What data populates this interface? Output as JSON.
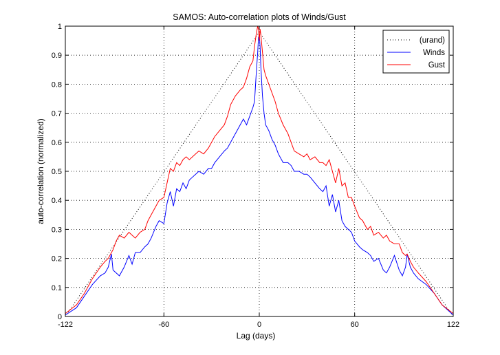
{
  "chart_data": {
    "type": "line",
    "title": "SAMOS: Auto-correlation plots of Winds/Gust",
    "xlabel": "Lag (days)",
    "ylabel": "auto-correlation (normalized)",
    "xlim": [
      -122,
      122
    ],
    "ylim": [
      0,
      1
    ],
    "xticks": [
      -122,
      -60,
      0,
      60,
      122
    ],
    "xtick_labels": [
      "-122",
      "-60",
      "0",
      "60",
      "122"
    ],
    "yticks": [
      0,
      0.1,
      0.2,
      0.3,
      0.4,
      0.5,
      0.6,
      0.7,
      0.8,
      0.9,
      1
    ],
    "ytick_labels": [
      "0",
      "0.1",
      "0.2",
      "0.3",
      "0.4",
      "0.5",
      "0.6",
      "0.7",
      "0.8",
      "0.9",
      "1"
    ],
    "grid": true,
    "legend_position": "top-right",
    "series": [
      {
        "name": "(urand)",
        "color": "#000000",
        "style": "dotted",
        "x": [
          -122,
          0,
          122
        ],
        "y": [
          0,
          0.98,
          0
        ]
      },
      {
        "name": "Winds",
        "color": "#0000ff",
        "style": "solid",
        "x": [
          -122,
          -115,
          -110,
          -105,
          -100,
          -97,
          -95,
          -93,
          -92,
          -90,
          -88,
          -85,
          -82,
          -80,
          -78,
          -75,
          -72,
          -70,
          -68,
          -65,
          -63,
          -60,
          -58,
          -56,
          -54,
          -52,
          -50,
          -48,
          -46,
          -44,
          -42,
          -40,
          -38,
          -35,
          -32,
          -30,
          -28,
          -25,
          -22,
          -20,
          -18,
          -15,
          -12,
          -10,
          -8,
          -6,
          -4,
          -3,
          -2,
          -1,
          -0.5,
          0,
          0.5,
          1,
          2,
          3,
          4,
          6,
          8,
          10,
          12,
          15,
          18,
          20,
          22,
          25,
          28,
          30,
          32,
          35,
          38,
          40,
          42,
          44,
          46,
          48,
          50,
          52,
          54,
          56,
          58,
          60,
          63,
          65,
          68,
          70,
          72,
          75,
          78,
          80,
          82,
          85,
          88,
          90,
          92,
          93,
          95,
          97,
          100,
          105,
          110,
          115,
          122
        ],
        "y": [
          0.005,
          0.03,
          0.07,
          0.11,
          0.14,
          0.15,
          0.17,
          0.215,
          0.16,
          0.15,
          0.14,
          0.17,
          0.21,
          0.18,
          0.22,
          0.22,
          0.24,
          0.25,
          0.27,
          0.31,
          0.33,
          0.32,
          0.39,
          0.43,
          0.38,
          0.44,
          0.43,
          0.46,
          0.44,
          0.47,
          0.48,
          0.49,
          0.5,
          0.49,
          0.51,
          0.51,
          0.53,
          0.55,
          0.57,
          0.58,
          0.6,
          0.63,
          0.66,
          0.68,
          0.66,
          0.69,
          0.72,
          0.74,
          0.83,
          0.91,
          0.96,
          0.97,
          0.93,
          0.86,
          0.76,
          0.7,
          0.66,
          0.64,
          0.61,
          0.59,
          0.56,
          0.53,
          0.53,
          0.52,
          0.5,
          0.5,
          0.49,
          0.49,
          0.48,
          0.46,
          0.44,
          0.43,
          0.45,
          0.38,
          0.42,
          0.36,
          0.4,
          0.33,
          0.31,
          0.3,
          0.29,
          0.26,
          0.24,
          0.23,
          0.22,
          0.21,
          0.19,
          0.2,
          0.16,
          0.15,
          0.17,
          0.21,
          0.16,
          0.14,
          0.17,
          0.215,
          0.17,
          0.15,
          0.13,
          0.11,
          0.08,
          0.04,
          0.005
        ]
      },
      {
        "name": "Gust",
        "color": "#ff0000",
        "style": "solid",
        "x": [
          -122,
          -115,
          -110,
          -105,
          -100,
          -97,
          -95,
          -93,
          -92,
          -90,
          -88,
          -85,
          -82,
          -80,
          -78,
          -75,
          -72,
          -70,
          -68,
          -65,
          -63,
          -60,
          -58,
          -56,
          -54,
          -52,
          -50,
          -48,
          -46,
          -44,
          -42,
          -40,
          -38,
          -35,
          -32,
          -30,
          -28,
          -25,
          -22,
          -20,
          -18,
          -15,
          -12,
          -10,
          -8,
          -6,
          -4,
          -3,
          -2,
          -1,
          -0.5,
          0,
          0.5,
          1,
          2,
          3,
          4,
          6,
          8,
          10,
          12,
          15,
          18,
          20,
          22,
          25,
          28,
          30,
          32,
          35,
          38,
          40,
          42,
          44,
          46,
          48,
          50,
          52,
          54,
          56,
          58,
          60,
          63,
          65,
          68,
          70,
          72,
          75,
          78,
          80,
          82,
          85,
          88,
          90,
          92,
          93,
          95,
          97,
          100,
          105,
          110,
          115,
          122
        ],
        "y": [
          0.01,
          0.04,
          0.08,
          0.13,
          0.17,
          0.19,
          0.2,
          0.22,
          0.23,
          0.26,
          0.28,
          0.27,
          0.29,
          0.28,
          0.27,
          0.29,
          0.3,
          0.33,
          0.35,
          0.38,
          0.4,
          0.41,
          0.46,
          0.51,
          0.5,
          0.53,
          0.52,
          0.54,
          0.55,
          0.54,
          0.55,
          0.56,
          0.57,
          0.56,
          0.58,
          0.6,
          0.62,
          0.64,
          0.66,
          0.69,
          0.73,
          0.76,
          0.78,
          0.79,
          0.82,
          0.86,
          0.88,
          0.93,
          0.97,
          1.0,
          0.99,
          0.95,
          0.99,
          0.97,
          0.91,
          0.85,
          0.83,
          0.8,
          0.77,
          0.74,
          0.7,
          0.66,
          0.63,
          0.6,
          0.57,
          0.56,
          0.55,
          0.56,
          0.54,
          0.55,
          0.53,
          0.53,
          0.52,
          0.54,
          0.5,
          0.46,
          0.51,
          0.45,
          0.46,
          0.41,
          0.41,
          0.38,
          0.34,
          0.33,
          0.3,
          0.31,
          0.28,
          0.29,
          0.27,
          0.28,
          0.26,
          0.25,
          0.25,
          0.22,
          0.21,
          0.215,
          0.19,
          0.17,
          0.15,
          0.12,
          0.08,
          0.04,
          0.01
        ]
      }
    ]
  }
}
